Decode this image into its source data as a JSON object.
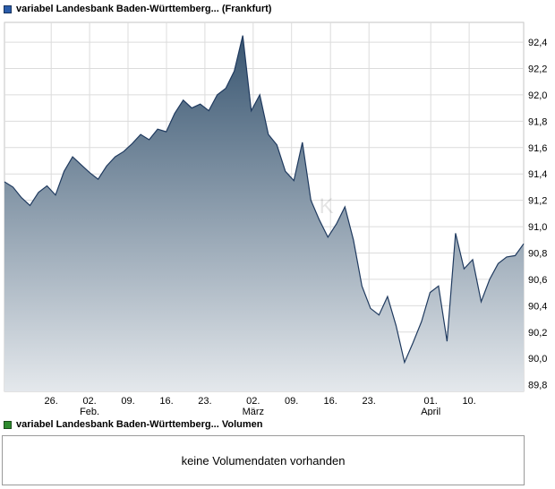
{
  "header": {
    "title": "variabel Landesbank Baden-Württemberg... (Frankfurt)",
    "marker_color": "#2a5caa"
  },
  "volume_legend": {
    "label": "variabel Landesbank Baden-Württemberg... Volumen",
    "marker_color": "#2e8b2e"
  },
  "volume_box": {
    "message": "keine Volumendaten vorhanden"
  },
  "watermark": "ECK",
  "chart_data": {
    "type": "area",
    "title": "variabel Landesbank Baden-Württemberg... (Frankfurt)",
    "ylabel": "",
    "xlabel": "",
    "ylim": [
      89.75,
      92.55
    ],
    "grid": true,
    "line_color": "#1f3a5f",
    "fill_top": "#32506c",
    "fill_bottom": "#e4e8ec",
    "y_ticks": [
      {
        "value": 92.4,
        "label": "92,4"
      },
      {
        "value": 92.2,
        "label": "92,2"
      },
      {
        "value": 92.0,
        "label": "92,0"
      },
      {
        "value": 91.8,
        "label": "91,8"
      },
      {
        "value": 91.6,
        "label": "91,6"
      },
      {
        "value": 91.4,
        "label": "91,4"
      },
      {
        "value": 91.2,
        "label": "91,2"
      },
      {
        "value": 91.0,
        "label": "91,0"
      },
      {
        "value": 90.8,
        "label": "90,8"
      },
      {
        "value": 90.6,
        "label": "90,6"
      },
      {
        "value": 90.4,
        "label": "90,4"
      },
      {
        "value": 90.2,
        "label": "90,2"
      },
      {
        "value": 90.0,
        "label": "90,0"
      },
      {
        "value": 89.8,
        "label": "89,8"
      }
    ],
    "x_ticks": [
      {
        "f": 0.09,
        "label": "26."
      },
      {
        "f": 0.164,
        "label": "02."
      },
      {
        "f": 0.238,
        "label": "09."
      },
      {
        "f": 0.312,
        "label": "16."
      },
      {
        "f": 0.386,
        "label": "23."
      },
      {
        "f": 0.479,
        "label": "02."
      },
      {
        "f": 0.553,
        "label": "09."
      },
      {
        "f": 0.628,
        "label": "16."
      },
      {
        "f": 0.702,
        "label": "23."
      },
      {
        "f": 0.821,
        "label": "01."
      },
      {
        "f": 0.895,
        "label": "10."
      }
    ],
    "month_labels": [
      {
        "f": 0.164,
        "label": "Feb."
      },
      {
        "f": 0.479,
        "label": "März"
      },
      {
        "f": 0.821,
        "label": "April"
      }
    ],
    "series": [
      {
        "name": "variabel Landesbank Baden-Württemberg... (Frankfurt)",
        "values": [
          91.34,
          91.3,
          91.22,
          91.16,
          91.26,
          91.31,
          91.24,
          91.42,
          91.53,
          91.47,
          91.41,
          91.36,
          91.46,
          91.53,
          91.57,
          91.63,
          91.7,
          91.66,
          91.74,
          91.72,
          91.86,
          91.96,
          91.9,
          91.93,
          91.88,
          92.0,
          92.05,
          92.18,
          92.45,
          91.88,
          92.0,
          91.7,
          91.62,
          91.42,
          91.35,
          91.64,
          91.2,
          91.05,
          90.92,
          91.02,
          91.15,
          90.9,
          90.55,
          90.38,
          90.33,
          90.47,
          90.25,
          89.97,
          90.12,
          90.28,
          90.5,
          90.55,
          90.13,
          90.95,
          90.68,
          90.75,
          90.43,
          90.6,
          90.72,
          90.77,
          90.78,
          90.87
        ]
      }
    ]
  }
}
